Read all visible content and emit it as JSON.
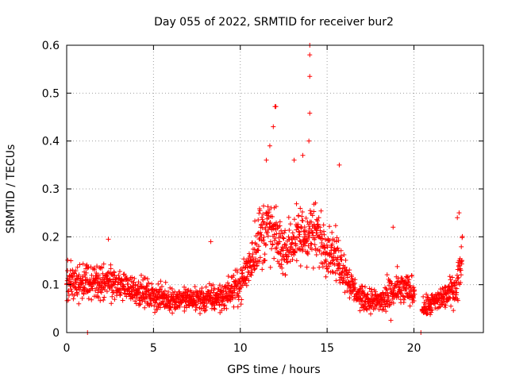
{
  "chart_data": {
    "type": "scatter",
    "title": "Day 055 of 2022, SRMTID for receiver bur2",
    "xlabel": "GPS time / hours",
    "ylabel": "SRMTID / TECUs",
    "xlim": [
      0,
      24
    ],
    "ylim": [
      0,
      0.6
    ],
    "xticks": [
      0,
      5,
      10,
      15,
      20
    ],
    "yticks": [
      0,
      0.1,
      0.2,
      0.3,
      0.4,
      0.5,
      0.6
    ],
    "grid": true,
    "marker": "+",
    "color": "#ff0000",
    "envelope": {
      "description_hours": "approximate per-time typical level and spread of the plotted points",
      "x": [
        0,
        1,
        2,
        3,
        4,
        5,
        6,
        7,
        8,
        9,
        10,
        10.5,
        11,
        11.5,
        12,
        12.5,
        13,
        13.5,
        14,
        14.5,
        15,
        15.5,
        16,
        16.5,
        17,
        18,
        18.5,
        19,
        19.5,
        20,
        20.4,
        20.6,
        21,
        21.5,
        22,
        22.5,
        22.8
      ],
      "center": [
        0.105,
        0.1,
        0.105,
        0.1,
        0.09,
        0.075,
        0.07,
        0.07,
        0.07,
        0.075,
        0.1,
        0.14,
        0.19,
        0.22,
        0.2,
        0.17,
        0.19,
        0.2,
        0.21,
        0.2,
        0.18,
        0.16,
        0.13,
        0.09,
        0.07,
        0.065,
        0.07,
        0.09,
        0.09,
        0.085,
        0.06,
        0.05,
        0.06,
        0.07,
        0.08,
        0.1,
        0.17
      ],
      "spread": [
        0.04,
        0.04,
        0.035,
        0.035,
        0.03,
        0.03,
        0.025,
        0.025,
        0.03,
        0.03,
        0.035,
        0.05,
        0.07,
        0.08,
        0.06,
        0.05,
        0.06,
        0.07,
        0.07,
        0.06,
        0.055,
        0.05,
        0.04,
        0.03,
        0.025,
        0.025,
        0.04,
        0.04,
        0.035,
        0.03,
        0.02,
        0.02,
        0.025,
        0.025,
        0.03,
        0.04,
        0.05
      ]
    },
    "notable_points": [
      {
        "x": 14.0,
        "y": 0.6
      },
      {
        "x": 14.0,
        "y": 0.58
      },
      {
        "x": 14.0,
        "y": 0.535
      },
      {
        "x": 14.0,
        "y": 0.458
      },
      {
        "x": 13.95,
        "y": 0.4
      },
      {
        "x": 12.0,
        "y": 0.472
      },
      {
        "x": 12.05,
        "y": 0.472
      },
      {
        "x": 11.9,
        "y": 0.43
      },
      {
        "x": 11.7,
        "y": 0.39
      },
      {
        "x": 11.5,
        "y": 0.36
      },
      {
        "x": 13.1,
        "y": 0.36
      },
      {
        "x": 13.6,
        "y": 0.37
      },
      {
        "x": 15.7,
        "y": 0.35
      },
      {
        "x": 18.8,
        "y": 0.22
      },
      {
        "x": 22.6,
        "y": 0.25
      },
      {
        "x": 22.5,
        "y": 0.24
      },
      {
        "x": 2.4,
        "y": 0.195
      },
      {
        "x": 8.3,
        "y": 0.19
      },
      {
        "x": 1.2,
        "y": 0.0
      },
      {
        "x": 20.4,
        "y": 0.0
      }
    ]
  }
}
